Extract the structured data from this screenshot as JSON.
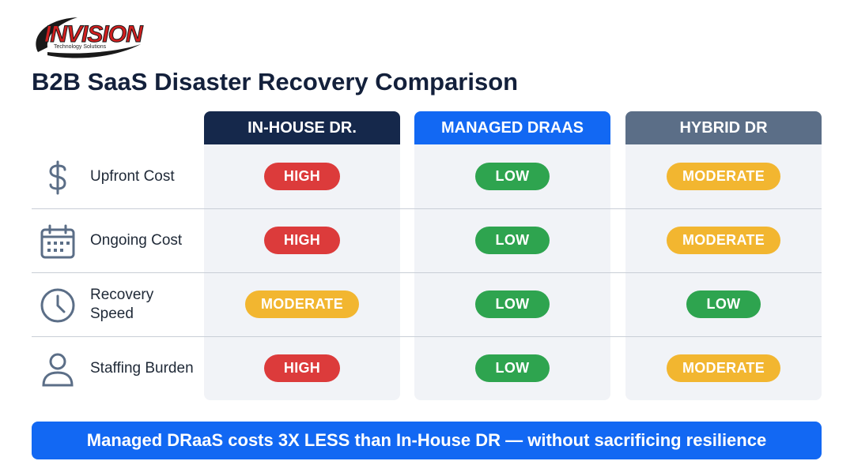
{
  "logo": {
    "name": "INVISION",
    "tagline": "Technology Solutions"
  },
  "title": "B2B SaaS Disaster Recovery Comparison",
  "columns": [
    "IN-HOUSE DR.",
    "MANAGED DRAAS",
    "HYBRID DR"
  ],
  "rows": [
    {
      "label": "Upfront Cost",
      "icon": "dollar-icon",
      "values": [
        "HIGH",
        "LOW",
        "MODERATE"
      ]
    },
    {
      "label": "Ongoing Cost",
      "icon": "calendar-icon",
      "values": [
        "HIGH",
        "LOW",
        "MODERATE"
      ]
    },
    {
      "label": "Recovery Speed",
      "icon": "clock-icon",
      "values": [
        "MODERATE",
        "LOW",
        "LOW"
      ]
    },
    {
      "label": "Staffing Burden",
      "icon": "user-icon",
      "values": [
        "HIGH",
        "LOW",
        "MODERATE"
      ]
    }
  ],
  "colors": {
    "HIGH": "#dc3b3b",
    "LOW": "#2ea44f",
    "MODERATE": "#f2b630",
    "in_house_header": "#15284b",
    "managed_header": "#1268f3",
    "hybrid_header": "#5b6e87",
    "banner": "#1268f3"
  },
  "banner": "Managed DRaaS costs 3X LESS than In-House DR — without sacrificing resilience"
}
